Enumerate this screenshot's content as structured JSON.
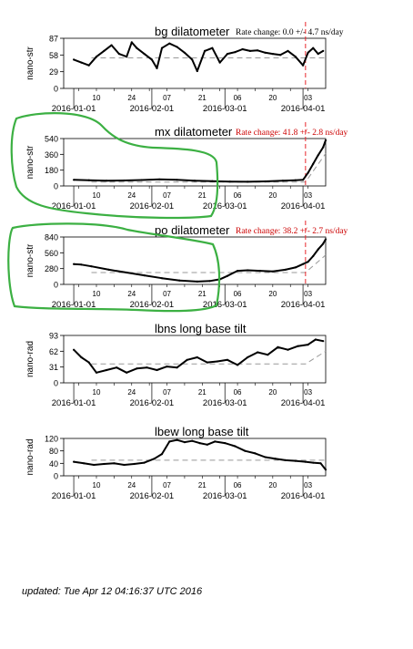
{
  "page": {
    "updated": "updated: Tue Apr 12 04:16:37 UTC 2016"
  },
  "colors": {
    "trace": "#000000",
    "trend": "#999999",
    "marker": "#e8262b",
    "rate_text_red": "#cc0000",
    "highlight": "#3cb043"
  },
  "x_axis": {
    "start": "2015-12-28",
    "end": "2016-04-10",
    "day_ticks": [
      "10",
      "24",
      "07",
      "21",
      "06",
      "20",
      "03"
    ],
    "month_labels": [
      "2016-01-01",
      "2016-02-01",
      "2016-03-01",
      "2016-04-01"
    ]
  },
  "chart_data": [
    {
      "type": "line",
      "title": "bg dilatometer",
      "ylabel": "nano-str",
      "ylim": [
        0,
        87
      ],
      "yticks": [
        0,
        29,
        58,
        87
      ],
      "rate_text": "Rate change: 0.0 +/- 4.7 ns/day",
      "rate_color": "black",
      "marker_date": "2016-04-02",
      "trend": [
        [
          "2016-01-08",
          53
        ],
        [
          "2016-04-02",
          53
        ],
        [
          "2016-04-10",
          53
        ]
      ],
      "series": [
        {
          "x": [
            "2016-01-01",
            "2016-01-04",
            "2016-01-07",
            "2016-01-10",
            "2016-01-13",
            "2016-01-16",
            "2016-01-19",
            "2016-01-22",
            "2016-01-24",
            "2016-01-26",
            "2016-01-29",
            "2016-02-01",
            "2016-02-03",
            "2016-02-05",
            "2016-02-08",
            "2016-02-11",
            "2016-02-14",
            "2016-02-17",
            "2016-02-19",
            "2016-02-22",
            "2016-02-25",
            "2016-02-28",
            "2016-03-02",
            "2016-03-05",
            "2016-03-08",
            "2016-03-11",
            "2016-03-14",
            "2016-03-17",
            "2016-03-20",
            "2016-03-23",
            "2016-03-26",
            "2016-03-29",
            "2016-04-01",
            "2016-04-03",
            "2016-04-05",
            "2016-04-07",
            "2016-04-09"
          ],
          "values": [
            50,
            45,
            40,
            55,
            65,
            75,
            60,
            55,
            80,
            70,
            60,
            50,
            35,
            70,
            78,
            72,
            62,
            50,
            30,
            65,
            70,
            45,
            60,
            63,
            68,
            65,
            66,
            62,
            60,
            58,
            65,
            55,
            40,
            62,
            70,
            60,
            65
          ]
        }
      ]
    },
    {
      "type": "line",
      "title": "mx dilatometer",
      "ylabel": "nano-str",
      "ylim": [
        0,
        540
      ],
      "yticks": [
        0,
        180,
        360,
        540
      ],
      "rate_text": "Rate change: 41.8 +/- 2.8 ns/day",
      "rate_color": "red",
      "marker_date": "2016-04-02",
      "trend": [
        [
          "2016-01-08",
          45
        ],
        [
          "2016-04-02",
          45
        ],
        [
          "2016-04-10",
          370
        ]
      ],
      "series": [
        {
          "x": [
            "2016-01-01",
            "2016-01-07",
            "2016-01-14",
            "2016-01-21",
            "2016-01-28",
            "2016-02-04",
            "2016-02-11",
            "2016-02-18",
            "2016-02-25",
            "2016-03-03",
            "2016-03-10",
            "2016-03-17",
            "2016-03-24",
            "2016-03-29",
            "2016-04-01",
            "2016-04-03",
            "2016-04-05",
            "2016-04-07",
            "2016-04-09",
            "2016-04-10"
          ],
          "values": [
            70,
            65,
            60,
            62,
            68,
            75,
            70,
            60,
            55,
            50,
            48,
            52,
            60,
            65,
            70,
            150,
            250,
            350,
            440,
            520
          ]
        }
      ]
    },
    {
      "type": "line",
      "title": "po dilatometer",
      "ylabel": "nano-str",
      "ylim": [
        0,
        840
      ],
      "yticks": [
        0,
        280,
        560,
        840
      ],
      "rate_text": "Rate change: 38.2 +/- 2.7 ns/day",
      "rate_color": "red",
      "marker_date": "2016-04-02",
      "trend": [
        [
          "2016-01-08",
          210
        ],
        [
          "2016-04-02",
          210
        ],
        [
          "2016-04-10",
          520
        ]
      ],
      "series": [
        {
          "x": [
            "2016-01-01",
            "2016-01-04",
            "2016-01-08",
            "2016-01-15",
            "2016-01-22",
            "2016-01-29",
            "2016-02-05",
            "2016-02-12",
            "2016-02-19",
            "2016-02-24",
            "2016-02-28",
            "2016-03-02",
            "2016-03-06",
            "2016-03-10",
            "2016-03-15",
            "2016-03-20",
            "2016-03-25",
            "2016-03-29",
            "2016-04-01",
            "2016-04-03",
            "2016-04-05",
            "2016-04-07",
            "2016-04-09",
            "2016-04-10"
          ],
          "values": [
            360,
            350,
            320,
            260,
            210,
            160,
            110,
            70,
            50,
            60,
            90,
            150,
            240,
            250,
            240,
            230,
            260,
            300,
            360,
            400,
            500,
            620,
            720,
            800
          ]
        }
      ]
    },
    {
      "type": "line",
      "title": "lbns long base tilt",
      "ylabel": "nano-rad",
      "ylim": [
        0,
        93
      ],
      "yticks": [
        0,
        31,
        62,
        93
      ],
      "rate_text": "",
      "marker_date": "",
      "trend": [
        [
          "2016-01-08",
          37
        ],
        [
          "2016-04-02",
          37
        ],
        [
          "2016-04-10",
          62
        ]
      ],
      "series": [
        {
          "x": [
            "2016-01-01",
            "2016-01-04",
            "2016-01-07",
            "2016-01-10",
            "2016-01-14",
            "2016-01-18",
            "2016-01-22",
            "2016-01-26",
            "2016-01-30",
            "2016-02-03",
            "2016-02-07",
            "2016-02-11",
            "2016-02-15",
            "2016-02-19",
            "2016-02-23",
            "2016-02-27",
            "2016-03-02",
            "2016-03-06",
            "2016-03-10",
            "2016-03-14",
            "2016-03-18",
            "2016-03-22",
            "2016-03-26",
            "2016-03-30",
            "2016-04-03",
            "2016-04-06",
            "2016-04-09"
          ],
          "values": [
            65,
            50,
            40,
            20,
            25,
            30,
            20,
            28,
            30,
            25,
            32,
            30,
            45,
            50,
            40,
            42,
            45,
            35,
            50,
            60,
            55,
            70,
            65,
            72,
            75,
            85,
            82
          ]
        }
      ]
    },
    {
      "type": "line",
      "title": "lbew long base tilt",
      "ylabel": "nano-rad",
      "ylim": [
        0,
        120
      ],
      "yticks": [
        0,
        40,
        80,
        120
      ],
      "rate_text": "",
      "marker_date": "",
      "trend": [
        [
          "2016-01-08",
          50
        ],
        [
          "2016-04-02",
          50
        ],
        [
          "2016-04-10",
          50
        ]
      ],
      "series": [
        {
          "x": [
            "2016-01-01",
            "2016-01-05",
            "2016-01-09",
            "2016-01-13",
            "2016-01-17",
            "2016-01-21",
            "2016-01-25",
            "2016-01-29",
            "2016-02-02",
            "2016-02-05",
            "2016-02-08",
            "2016-02-11",
            "2016-02-14",
            "2016-02-17",
            "2016-02-20",
            "2016-02-23",
            "2016-02-26",
            "2016-03-01",
            "2016-03-05",
            "2016-03-09",
            "2016-03-13",
            "2016-03-17",
            "2016-03-21",
            "2016-03-25",
            "2016-03-29",
            "2016-04-02",
            "2016-04-05",
            "2016-04-08",
            "2016-04-10"
          ],
          "values": [
            45,
            40,
            35,
            38,
            40,
            35,
            38,
            42,
            55,
            70,
            110,
            115,
            108,
            112,
            105,
            100,
            110,
            105,
            95,
            80,
            72,
            60,
            55,
            50,
            48,
            45,
            42,
            40,
            20
          ]
        }
      ]
    }
  ]
}
